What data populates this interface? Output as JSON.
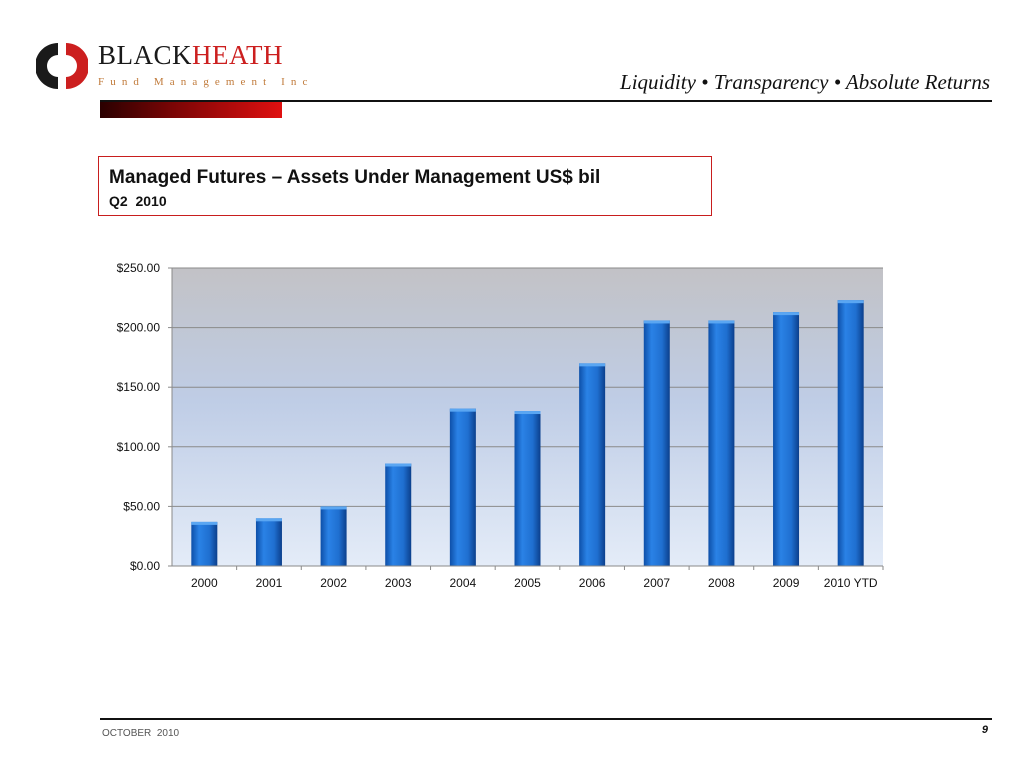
{
  "header": {
    "brand_part1": "BLACK",
    "brand_part2": "HEATH",
    "brand_tagline": "Fund Management Inc",
    "tagline": "Liquidity  • Transparency  • Absolute Returns"
  },
  "slide": {
    "title": "Managed Futures – Assets Under Management US$ bil",
    "subtitle": "Q2  2010"
  },
  "chart_data": {
    "type": "bar",
    "title": "",
    "xlabel": "",
    "ylabel": "",
    "categories": [
      "2000",
      "2001",
      "2002",
      "2003",
      "2004",
      "2005",
      "2006",
      "2007",
      "2008",
      "2009",
      "2010 YTD"
    ],
    "values": [
      37,
      40,
      50,
      86,
      132,
      130,
      170,
      206,
      206,
      213,
      223
    ],
    "ylim": [
      0,
      250
    ],
    "yticks": [
      0,
      50,
      100,
      150,
      200,
      250
    ],
    "ytick_labels": [
      "$0.00",
      "$50.00",
      "$100.00",
      "$150.00",
      "$200.00",
      "$250.00"
    ],
    "grid": true,
    "legend": "none",
    "colors": {
      "bar": "#1f6fd0",
      "plot_top": "#c2c2c6",
      "plot_bottom": "#e4ecf8",
      "gridline": "#8a8a8a"
    }
  },
  "footer": {
    "date": "OCTOBER  2010",
    "page_number": "9"
  },
  "colors": {
    "brand_red": "#cc1f1f",
    "rule": "#111111"
  }
}
